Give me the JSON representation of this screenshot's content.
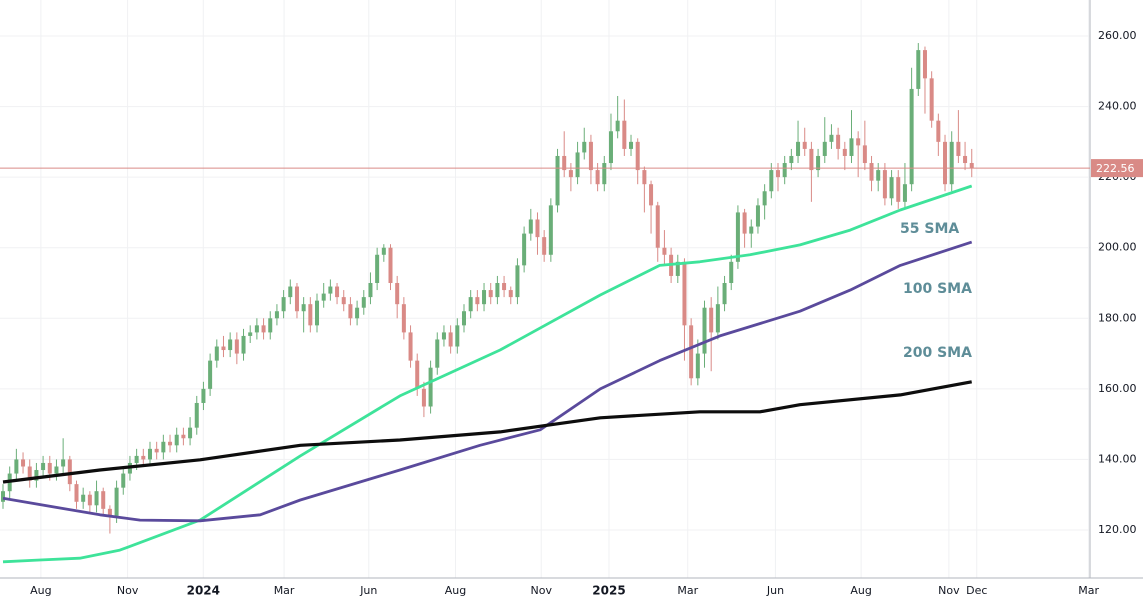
{
  "chart_data": {
    "type": "candlestick",
    "xlim": [
      -0.45,
      162.7
    ],
    "ylim": [
      106.4,
      270.2
    ],
    "xticks": [
      {
        "value": 5.67,
        "label": "Aug"
      },
      {
        "value": 18.65,
        "label": "Nov"
      },
      {
        "value": 29.98,
        "label": "2024"
      },
      {
        "value": 42.07,
        "label": "Mar"
      },
      {
        "value": 54.75,
        "label": "Jun"
      },
      {
        "value": 67.73,
        "label": "Aug"
      },
      {
        "value": 80.56,
        "label": "Nov"
      },
      {
        "value": 90.7,
        "label": "2025"
      },
      {
        "value": 102.49,
        "label": "Mar"
      },
      {
        "value": 115.62,
        "label": "Jun"
      },
      {
        "value": 128.44,
        "label": "Aug"
      },
      {
        "value": 141.58,
        "label": "Nov"
      },
      {
        "value": 145.75,
        "label": "Dec"
      },
      {
        "value": 162.5,
        "label": "Mar"
      }
    ],
    "yticks": [
      {
        "value": 120,
        "label": "120.00"
      },
      {
        "value": 140,
        "label": "140.00"
      },
      {
        "value": 160,
        "label": "160.00"
      },
      {
        "value": 180,
        "label": "180.00"
      },
      {
        "value": 200,
        "label": "200.00"
      },
      {
        "value": 220,
        "label": "220.00"
      },
      {
        "value": 240,
        "label": "240.00"
      },
      {
        "value": 260,
        "label": "260.00"
      }
    ],
    "grid": true,
    "up_color": "#6aae78",
    "down_color": "#d98a86",
    "last_price": 222.56,
    "last_price_color": "#d98a86",
    "x": [
      0,
      1,
      2,
      3,
      4,
      5,
      6,
      7,
      8,
      9,
      10,
      11,
      12,
      13,
      14,
      15,
      16,
      17,
      18,
      19,
      20,
      21,
      22,
      23,
      24,
      25,
      26,
      27,
      28,
      29,
      30,
      31,
      32,
      33,
      34,
      35,
      36,
      37,
      38,
      39,
      40,
      41,
      42,
      43,
      44,
      45,
      46,
      47,
      48,
      49,
      50,
      51,
      52,
      53,
      54,
      55,
      56,
      57,
      58,
      59,
      60,
      61,
      62,
      63,
      64,
      65,
      66,
      67,
      68,
      69,
      70,
      71,
      72,
      73,
      74,
      75,
      76,
      77,
      78,
      79,
      80,
      81,
      82,
      83,
      84,
      85,
      86,
      87,
      88,
      89,
      90,
      91,
      92,
      93,
      94,
      95,
      96,
      97,
      98,
      99,
      100,
      101,
      102,
      103,
      104,
      105,
      106,
      107,
      108,
      109,
      110,
      111,
      112,
      113,
      114,
      115,
      116,
      117,
      118,
      119,
      120,
      121,
      122,
      123,
      124,
      125,
      126,
      127,
      128,
      129,
      130,
      131,
      132,
      133,
      134,
      135,
      136,
      137,
      138,
      139,
      140,
      141,
      142,
      143,
      144,
      145
    ],
    "ohlc": [
      [
        128,
        133,
        126,
        131
      ],
      [
        131,
        138,
        129,
        136
      ],
      [
        136,
        143,
        134,
        140
      ],
      [
        140,
        142,
        136,
        138
      ],
      [
        138,
        140,
        132,
        134
      ],
      [
        134,
        139,
        132,
        137
      ],
      [
        137,
        141,
        135,
        139
      ],
      [
        139,
        141,
        134,
        136
      ],
      [
        136,
        140,
        134,
        138
      ],
      [
        138,
        146,
        136,
        140
      ],
      [
        140,
        141,
        131,
        133
      ],
      [
        133,
        134,
        126,
        128
      ],
      [
        128,
        132,
        126,
        130
      ],
      [
        130,
        131,
        125,
        127
      ],
      [
        127,
        134,
        125,
        131
      ],
      [
        131,
        132,
        124,
        126
      ],
      [
        126,
        127,
        119,
        124
      ],
      [
        124,
        134,
        122,
        132
      ],
      [
        132,
        138,
        130,
        136
      ],
      [
        136,
        141,
        134,
        139
      ],
      [
        139,
        143,
        137,
        141
      ],
      [
        141,
        143,
        138,
        140
      ],
      [
        140,
        145,
        138,
        143
      ],
      [
        143,
        145,
        140,
        142
      ],
      [
        142,
        147,
        140,
        145
      ],
      [
        145,
        147,
        142,
        144
      ],
      [
        144,
        149,
        142,
        147
      ],
      [
        147,
        149,
        144,
        146
      ],
      [
        146,
        152,
        144,
        149
      ],
      [
        149,
        158,
        147,
        156
      ],
      [
        156,
        162,
        154,
        160
      ],
      [
        160,
        170,
        158,
        168
      ],
      [
        168,
        174,
        166,
        172
      ],
      [
        172,
        175,
        169,
        171
      ],
      [
        171,
        176,
        169,
        174
      ],
      [
        174,
        176,
        167,
        170
      ],
      [
        170,
        177,
        168,
        175
      ],
      [
        175,
        178,
        173,
        176
      ],
      [
        176,
        180,
        174,
        178
      ],
      [
        178,
        180,
        174,
        176
      ],
      [
        176,
        182,
        174,
        180
      ],
      [
        180,
        184,
        178,
        182
      ],
      [
        182,
        188,
        180,
        186
      ],
      [
        186,
        191,
        184,
        189
      ],
      [
        189,
        190,
        180,
        182
      ],
      [
        182,
        186,
        176,
        184
      ],
      [
        184,
        186,
        176,
        178
      ],
      [
        178,
        187,
        176,
        185
      ],
      [
        185,
        190,
        183,
        187
      ],
      [
        187,
        191,
        185,
        189
      ],
      [
        189,
        190,
        184,
        186
      ],
      [
        186,
        188,
        182,
        184
      ],
      [
        184,
        186,
        178,
        180
      ],
      [
        180,
        185,
        178,
        183
      ],
      [
        183,
        188,
        181,
        186
      ],
      [
        186,
        193,
        184,
        190
      ],
      [
        190,
        200,
        188,
        198
      ],
      [
        198,
        201,
        196,
        200
      ],
      [
        200,
        201,
        188,
        190
      ],
      [
        190,
        192,
        180,
        184
      ],
      [
        184,
        186,
        174,
        176
      ],
      [
        176,
        178,
        166,
        168
      ],
      [
        168,
        170,
        158,
        160
      ],
      [
        160,
        162,
        152,
        155
      ],
      [
        155,
        168,
        153,
        166
      ],
      [
        166,
        176,
        164,
        174
      ],
      [
        174,
        178,
        172,
        176
      ],
      [
        176,
        178,
        170,
        172
      ],
      [
        172,
        180,
        170,
        178
      ],
      [
        178,
        184,
        176,
        182
      ],
      [
        182,
        188,
        180,
        186
      ],
      [
        186,
        188,
        182,
        184
      ],
      [
        184,
        190,
        182,
        188
      ],
      [
        188,
        190,
        184,
        186
      ],
      [
        186,
        192,
        184,
        190
      ],
      [
        190,
        192,
        186,
        188
      ],
      [
        188,
        189,
        184,
        186
      ],
      [
        186,
        197,
        184,
        195
      ],
      [
        195,
        206,
        193,
        204
      ],
      [
        204,
        211,
        202,
        208
      ],
      [
        208,
        210,
        198,
        203
      ],
      [
        203,
        205,
        196,
        198
      ],
      [
        198,
        214,
        196,
        212
      ],
      [
        212,
        228,
        210,
        226
      ],
      [
        226,
        233,
        220,
        222
      ],
      [
        222,
        224,
        216,
        220
      ],
      [
        220,
        230,
        218,
        227
      ],
      [
        227,
        234,
        225,
        230
      ],
      [
        230,
        232,
        218,
        222
      ],
      [
        222,
        224,
        216,
        218
      ],
      [
        218,
        226,
        216,
        224
      ],
      [
        224,
        238,
        222,
        233
      ],
      [
        233,
        243,
        231,
        236
      ],
      [
        236,
        242,
        226,
        228
      ],
      [
        228,
        232,
        226,
        230
      ],
      [
        230,
        231,
        218,
        222
      ],
      [
        222,
        223,
        210,
        218
      ],
      [
        218,
        219,
        204,
        212
      ],
      [
        212,
        213,
        196,
        200
      ],
      [
        200,
        205,
        195,
        198
      ],
      [
        198,
        200,
        190,
        192
      ],
      [
        192,
        198,
        190,
        196
      ],
      [
        196,
        197,
        168,
        178
      ],
      [
        178,
        180,
        161,
        163
      ],
      [
        163,
        174,
        161,
        170
      ],
      [
        170,
        185,
        166,
        183
      ],
      [
        183,
        186,
        165,
        176
      ],
      [
        176,
        189,
        174,
        184
      ],
      [
        184,
        192,
        182,
        190
      ],
      [
        190,
        198,
        188,
        196
      ],
      [
        196,
        212,
        194,
        210
      ],
      [
        210,
        211,
        200,
        204
      ],
      [
        204,
        208,
        200,
        206
      ],
      [
        206,
        214,
        204,
        212
      ],
      [
        212,
        218,
        208,
        216
      ],
      [
        216,
        224,
        214,
        222
      ],
      [
        222,
        224,
        216,
        220
      ],
      [
        220,
        226,
        218,
        224
      ],
      [
        224,
        228,
        222,
        226
      ],
      [
        226,
        236,
        224,
        230
      ],
      [
        230,
        234,
        226,
        228
      ],
      [
        228,
        230,
        213,
        222
      ],
      [
        222,
        228,
        220,
        226
      ],
      [
        226,
        237,
        224,
        230
      ],
      [
        230,
        235,
        228,
        232
      ],
      [
        232,
        234,
        225,
        228
      ],
      [
        228,
        230,
        222,
        226
      ],
      [
        226,
        239,
        224,
        231
      ],
      [
        231,
        233,
        220,
        229
      ],
      [
        229,
        236,
        222,
        224
      ],
      [
        224,
        226,
        216,
        219
      ],
      [
        219,
        224,
        216,
        222
      ],
      [
        222,
        224,
        212,
        214
      ],
      [
        214,
        222,
        212,
        220
      ],
      [
        220,
        222,
        211,
        213
      ],
      [
        213,
        224,
        211,
        218
      ],
      [
        218,
        251,
        216,
        245
      ],
      [
        245,
        258,
        243,
        256
      ],
      [
        256,
        257,
        238,
        248
      ],
      [
        248,
        250,
        234,
        236
      ],
      [
        236,
        238,
        226,
        230
      ],
      [
        230,
        232,
        216,
        218
      ],
      [
        218,
        233,
        216,
        230
      ],
      [
        230,
        239,
        224,
        226
      ],
      [
        226,
        230,
        222,
        224
      ],
      [
        224,
        228,
        220,
        222.56
      ]
    ],
    "series": [
      {
        "name": "55 SMA",
        "color": "#3ee39a",
        "x": [
          0,
          5.5,
          11.5,
          17.5,
          29.5,
          44.5,
          59.4,
          74.4,
          89.4,
          98.3,
          104.3,
          111.8,
          119.3,
          126.8,
          134.3,
          145
        ],
        "values": [
          111,
          111.5,
          112,
          114.3,
          122.8,
          141,
          158,
          171,
          186.6,
          195,
          196,
          198,
          200.8,
          205,
          210.7,
          217.5
        ]
      },
      {
        "name": "100 SMA",
        "color": "#5a4a9c",
        "x": [
          0,
          14.5,
          20.5,
          29.5,
          38.5,
          44.5,
          59.4,
          71.4,
          80.4,
          89.4,
          98.3,
          107.3,
          119.3,
          126.8,
          134.3,
          145
        ],
        "values": [
          129,
          124.3,
          122.8,
          122.6,
          124.3,
          128.5,
          137,
          144,
          148.4,
          160,
          168,
          175,
          182,
          188,
          195,
          201.6
        ]
      },
      {
        "name": "200 SMA",
        "color": "#0d0d0d",
        "x": [
          0,
          14.5,
          29.5,
          44.5,
          59.4,
          74.4,
          89.4,
          104.3,
          113.3,
          119.3,
          134.3,
          145
        ],
        "values": [
          133.6,
          137,
          139.9,
          144,
          145.5,
          147.8,
          151.8,
          153.5,
          153.5,
          155.5,
          158.3,
          162
        ]
      }
    ]
  }
}
